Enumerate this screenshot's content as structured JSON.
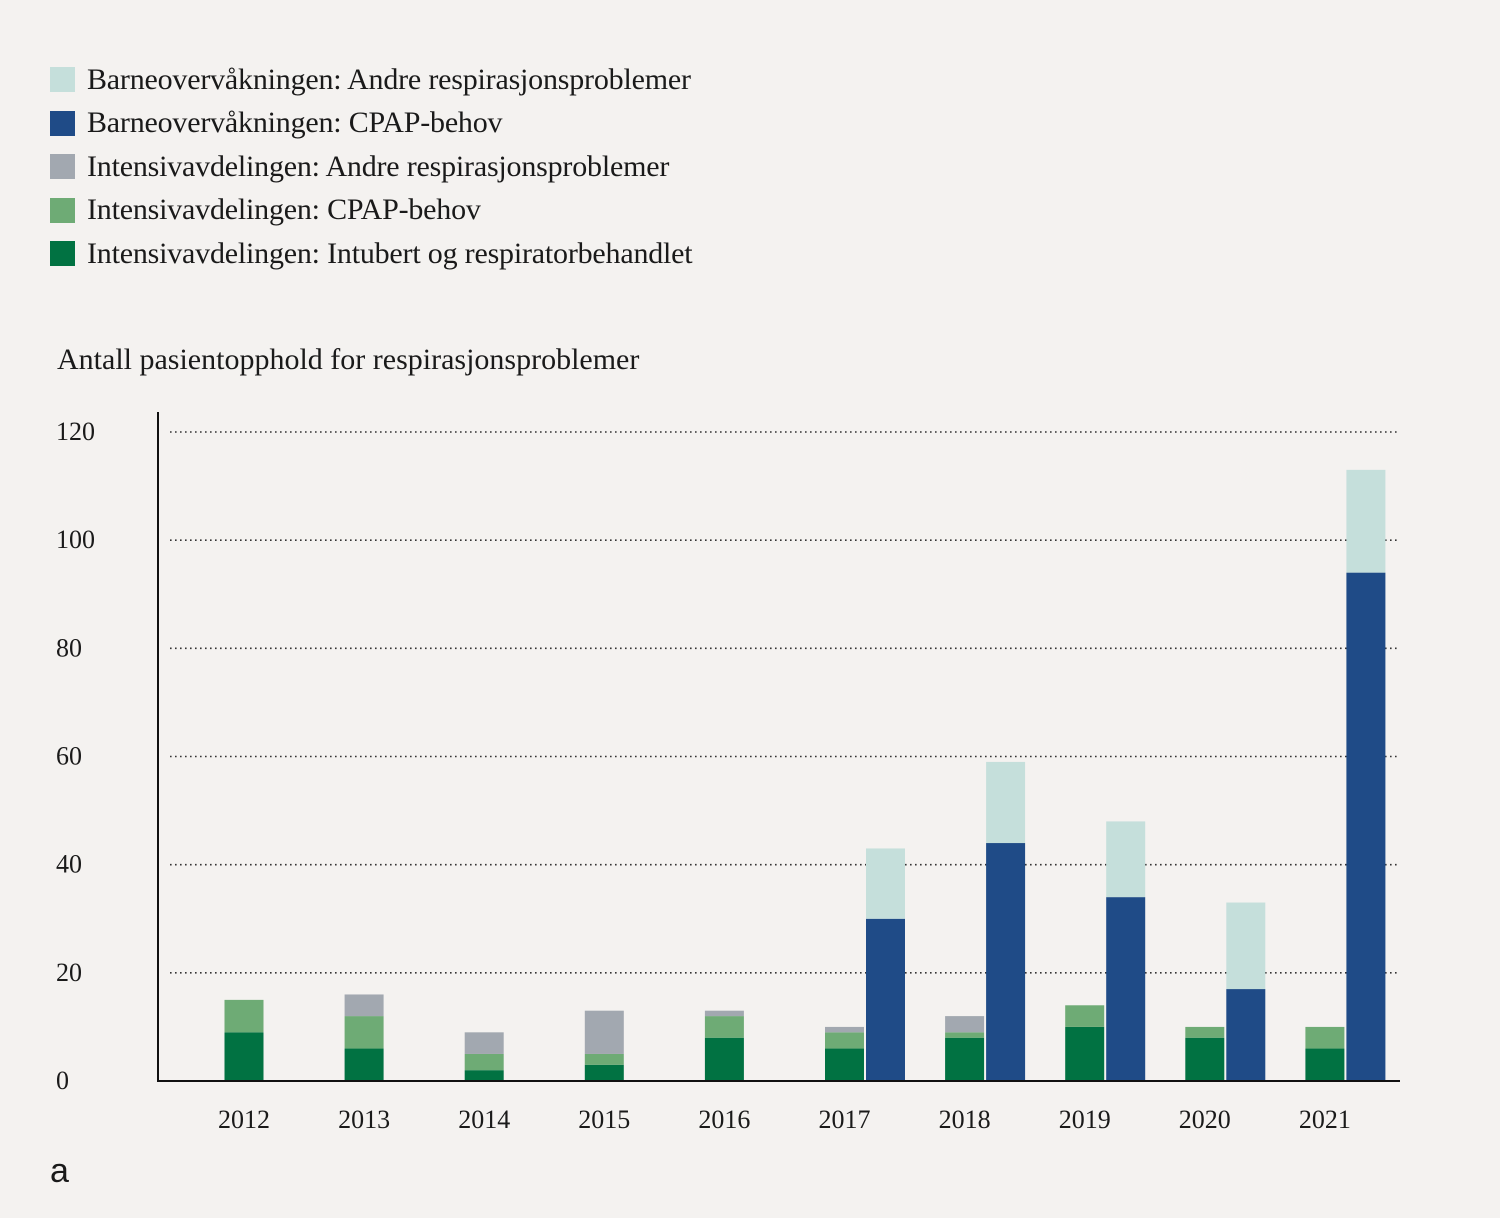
{
  "legend": [
    {
      "label": "Barneovervåkningen: Andre respirasjonsproblemer",
      "color": "#c5dfdb"
    },
    {
      "label": "Barneovervåkningen: CPAP-behov",
      "color": "#1f4b87"
    },
    {
      "label": "Intensivavdelingen: Andre respirasjonsproblemer",
      "color": "#a2a8b0"
    },
    {
      "label": "Intensivavdelingen: CPAP-behov",
      "color": "#6eab75"
    },
    {
      "label": "Intensivavdelingen: Intubert og respiratorbehandlet",
      "color": "#017242"
    }
  ],
  "panel_label": "a",
  "chart_data": {
    "type": "bar",
    "stacked": true,
    "title": "",
    "ylabel": "Antall pasientopphold for respirasjonsproblemer",
    "xlabel": "",
    "ylim": [
      0,
      120
    ],
    "yticks": [
      0,
      20,
      40,
      60,
      80,
      100,
      120
    ],
    "grid": "dotted-horizontal",
    "categories": [
      "2012",
      "2013",
      "2014",
      "2015",
      "2016",
      "2017",
      "2018",
      "2019",
      "2020",
      "2021"
    ],
    "groups": [
      {
        "name": "Intensivavdelingen",
        "series": [
          {
            "name": "Intensivavdelingen: Intubert og respiratorbehandlet",
            "color": "#017242",
            "values": [
              9,
              6,
              2,
              3,
              8,
              6,
              8,
              10,
              8,
              6
            ]
          },
          {
            "name": "Intensivavdelingen: CPAP-behov",
            "color": "#6eab75",
            "values": [
              6,
              6,
              3,
              2,
              4,
              3,
              1,
              4,
              2,
              4
            ]
          },
          {
            "name": "Intensivavdelingen: Andre respirasjonsproblemer",
            "color": "#a2a8b0",
            "values": [
              0,
              4,
              4,
              8,
              1,
              1,
              3,
              0,
              0,
              0
            ]
          }
        ]
      },
      {
        "name": "Barneovervåkningen",
        "series": [
          {
            "name": "Barneovervåkningen: CPAP-behov",
            "color": "#1f4b87",
            "values": [
              0,
              0,
              0,
              0,
              0,
              30,
              44,
              34,
              17,
              94
            ]
          },
          {
            "name": "Barneovervåkningen: Andre respirasjonsproblemer",
            "color": "#c5dfdb",
            "values": [
              0,
              0,
              0,
              0,
              0,
              13,
              15,
              14,
              16,
              19
            ]
          }
        ]
      }
    ]
  }
}
